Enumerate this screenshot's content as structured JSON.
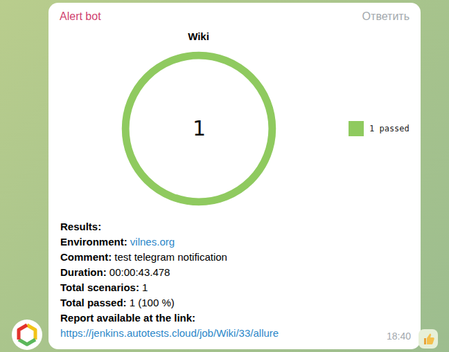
{
  "chart_data": {
    "type": "donut",
    "title": "Wiki",
    "categories": [
      "1 passed"
    ],
    "values": [
      1
    ],
    "colors": [
      "#8fca5f"
    ],
    "annotations": [
      "1"
    ],
    "legend": "right"
  },
  "message": {
    "sender": "Alert bot",
    "reply": "Ответить",
    "heading": "Results:",
    "fields": [
      {
        "label": "Environment:",
        "value": "vilnes.org",
        "link": true
      },
      {
        "label": "Comment:",
        "value": "test telegram notification",
        "link": false
      },
      {
        "label": "Duration:",
        "value": "00:00:43.478",
        "link": false
      },
      {
        "label": "Total scenarios:",
        "value": "1",
        "link": false
      },
      {
        "label": "Total passed:",
        "value": "1 (100 %)",
        "link": false
      }
    ],
    "link_intro": "Report available at the link:",
    "link": "https://jenkins.autotests.cloud/job/Wiki/33/allure",
    "time": "18:40"
  }
}
